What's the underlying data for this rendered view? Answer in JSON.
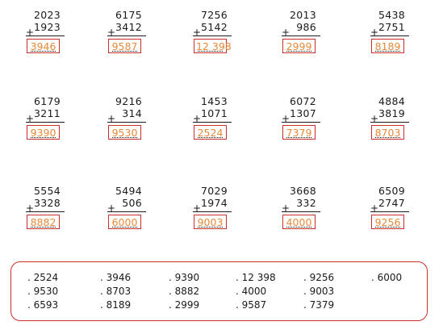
{
  "problems": [
    {
      "a": "2023",
      "b": "1923",
      "answer": "3946"
    },
    {
      "a": "6175",
      "b": "3412",
      "answer": "9587"
    },
    {
      "a": "7256",
      "b": "5142",
      "answer": "12 398"
    },
    {
      "a": "2013",
      "b": "986",
      "answer": "2999"
    },
    {
      "a": "5438",
      "b": "2751",
      "answer": "8189"
    },
    {
      "a": "6179",
      "b": "3211",
      "answer": "9390"
    },
    {
      "a": "9216",
      "b": "314",
      "answer": "9530"
    },
    {
      "a": "1453",
      "b": "1071",
      "answer": "2524"
    },
    {
      "a": "6072",
      "b": "1307",
      "answer": "7379"
    },
    {
      "a": "4884",
      "b": "3819",
      "answer": "8703"
    },
    {
      "a": "5554",
      "b": "3328",
      "answer": "8882"
    },
    {
      "a": "5494",
      "b": "506",
      "answer": "6000"
    },
    {
      "a": "7029",
      "b": "1974",
      "answer": "9003"
    },
    {
      "a": "3668",
      "b": "332",
      "answer": "4000"
    },
    {
      "a": "6509",
      "b": "2747",
      "answer": "9256"
    }
  ],
  "operator": "+",
  "answer_bank": {
    "columns": [
      [
        ". 2524",
        ". 9530",
        ". 6593"
      ],
      [
        ". 3946",
        ". 8703",
        ". 8189"
      ],
      [
        ". 9390",
        ". 8882",
        ". 2999"
      ],
      [
        ". 12 398",
        ". 4000",
        ". 9587"
      ],
      [
        ". 9256",
        ". 9003",
        ". 7379"
      ],
      [
        ". 6000"
      ]
    ]
  },
  "colors": {
    "box_border": "#cc2d2d",
    "answer_text": "#e8883a",
    "text": "#1a1a1a"
  }
}
